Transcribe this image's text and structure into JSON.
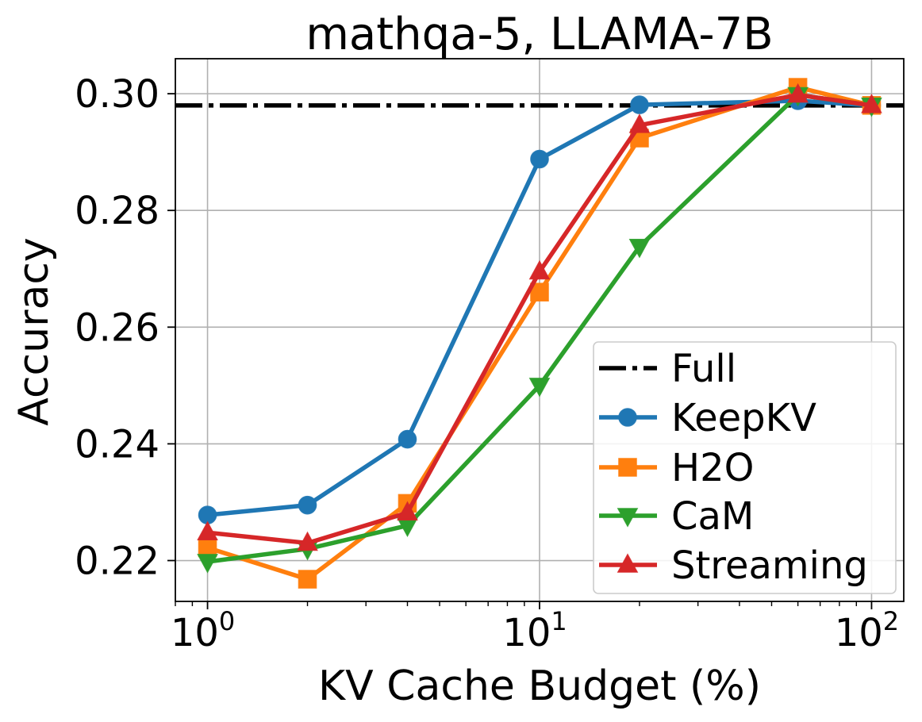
{
  "chart_data": {
    "type": "line",
    "title": "mathqa-5, LLAMA-7B",
    "xlabel": "KV Cache Budget (%)",
    "ylabel": "Accuracy",
    "xscale": "log",
    "xlim": [
      0.8,
      125
    ],
    "ylim": [
      0.213,
      0.306
    ],
    "grid": true,
    "legend_position": "lower-right",
    "x_ticks": [
      {
        "value": 1,
        "base": "10",
        "exp": "0"
      },
      {
        "value": 10,
        "base": "10",
        "exp": "1"
      },
      {
        "value": 100,
        "base": "10",
        "exp": "2"
      }
    ],
    "y_ticks": [
      {
        "value": 0.22,
        "label": "0.22"
      },
      {
        "value": 0.24,
        "label": "0.24"
      },
      {
        "value": 0.26,
        "label": "0.26"
      },
      {
        "value": 0.28,
        "label": "0.28"
      },
      {
        "value": 0.3,
        "label": "0.30"
      }
    ],
    "reference_line": {
      "name": "Full",
      "value": 0.298,
      "color": "#000000",
      "style": "dash-dot"
    },
    "x": [
      1,
      2,
      4,
      10,
      20,
      60,
      100
    ],
    "series": [
      {
        "name": "KeepKV",
        "color": "#1f77b4",
        "marker": "circle",
        "values": [
          0.2278,
          0.2295,
          0.2408,
          0.2888,
          0.2981,
          0.2988,
          0.298
        ]
      },
      {
        "name": "H2O",
        "color": "#ff7f0e",
        "marker": "square",
        "values": [
          0.2222,
          0.2168,
          0.2298,
          0.266,
          0.2924,
          0.3011,
          0.298
        ]
      },
      {
        "name": "CaM",
        "color": "#2ca02c",
        "marker": "triangle-down",
        "values": [
          0.2198,
          0.222,
          0.226,
          0.25,
          0.2738,
          0.2998,
          0.298
        ]
      },
      {
        "name": "Streaming",
        "color": "#d62728",
        "marker": "triangle-up",
        "values": [
          0.2248,
          0.223,
          0.2282,
          0.2695,
          0.2946,
          0.2998,
          0.298
        ]
      }
    ]
  }
}
